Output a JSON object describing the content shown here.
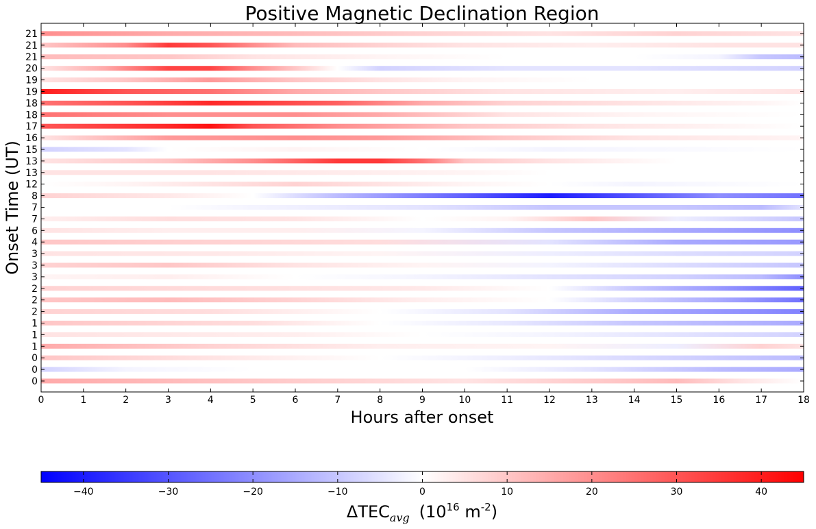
{
  "chart_data": {
    "type": "heatmap",
    "title": "Positive Magnetic Declination Region",
    "xlabel": "Hours after onset",
    "ylabel": "Onset Time (UT)",
    "xlim": [
      0,
      18
    ],
    "x_ticks": [
      "0",
      "1",
      "2",
      "3",
      "4",
      "5",
      "6",
      "7",
      "8",
      "9",
      "10",
      "11",
      "12",
      "13",
      "14",
      "15",
      "16",
      "17",
      "18"
    ],
    "row_labels_bottom_to_top": [
      "0",
      "0",
      "0",
      "1",
      "1",
      "1",
      "2",
      "2",
      "2",
      "3",
      "3",
      "3",
      "4",
      "6",
      "7",
      "7",
      "8",
      "12",
      "13",
      "13",
      "15",
      "16",
      "17",
      "18",
      "18",
      "19",
      "19",
      "20",
      "21",
      "21",
      "21"
    ],
    "rows_bottom_to_top": [
      [
        [
          0,
          15
        ],
        [
          5,
          10
        ],
        [
          10,
          5
        ],
        [
          15,
          12
        ],
        [
          16.5,
          5
        ],
        [
          18,
          0
        ]
      ],
      [
        [
          0,
          -8
        ],
        [
          2,
          -2
        ],
        [
          5,
          0
        ],
        [
          10,
          0
        ],
        [
          13,
          -5
        ],
        [
          16,
          -12
        ],
        [
          18,
          -15
        ]
      ],
      [
        [
          0,
          10
        ],
        [
          4,
          5
        ],
        [
          8,
          0
        ],
        [
          11,
          -3
        ],
        [
          15,
          -8
        ],
        [
          18,
          -12
        ]
      ],
      [
        [
          0,
          15
        ],
        [
          4,
          8
        ],
        [
          8,
          3
        ],
        [
          12,
          2
        ],
        [
          15,
          -3
        ],
        [
          17,
          8
        ],
        [
          18,
          5
        ]
      ],
      [
        [
          0,
          5
        ],
        [
          6,
          3
        ],
        [
          9,
          0
        ],
        [
          12,
          -2
        ],
        [
          15,
          -5
        ],
        [
          18,
          -8
        ]
      ],
      [
        [
          0,
          10
        ],
        [
          5,
          6
        ],
        [
          8,
          0
        ],
        [
          11,
          -4
        ],
        [
          14,
          -10
        ],
        [
          18,
          -15
        ]
      ],
      [
        [
          0,
          8
        ],
        [
          4,
          6
        ],
        [
          8,
          0
        ],
        [
          11,
          -5
        ],
        [
          14,
          -15
        ],
        [
          18,
          -22
        ]
      ],
      [
        [
          0,
          10
        ],
        [
          3,
          12
        ],
        [
          6,
          8
        ],
        [
          9,
          3
        ],
        [
          12,
          0
        ],
        [
          14,
          -8
        ],
        [
          16,
          -15
        ],
        [
          18,
          -25
        ]
      ],
      [
        [
          0,
          8
        ],
        [
          5,
          6
        ],
        [
          9,
          4
        ],
        [
          12,
          0
        ],
        [
          14,
          -10
        ],
        [
          16,
          -18
        ],
        [
          18,
          -28
        ]
      ],
      [
        [
          0,
          2
        ],
        [
          3,
          3
        ],
        [
          6,
          0
        ],
        [
          9,
          -2
        ],
        [
          12,
          -5
        ],
        [
          15,
          -8
        ],
        [
          17,
          -12
        ],
        [
          18,
          -20
        ]
      ],
      [
        [
          0,
          8
        ],
        [
          3,
          10
        ],
        [
          6,
          5
        ],
        [
          9,
          2
        ],
        [
          12,
          -2
        ],
        [
          15,
          -6
        ],
        [
          18,
          -10
        ]
      ],
      [
        [
          0,
          5
        ],
        [
          4,
          4
        ],
        [
          8,
          2
        ],
        [
          12,
          -3
        ],
        [
          15,
          -6
        ],
        [
          18,
          -8
        ]
      ],
      [
        [
          0,
          10
        ],
        [
          4,
          8
        ],
        [
          8,
          6
        ],
        [
          12,
          -5
        ],
        [
          15,
          -15
        ],
        [
          18,
          -18
        ]
      ],
      [
        [
          0,
          5
        ],
        [
          3,
          3
        ],
        [
          6,
          3
        ],
        [
          9,
          -2
        ],
        [
          12,
          -10
        ],
        [
          15,
          -15
        ],
        [
          18,
          -20
        ]
      ],
      [
        [
          0,
          3
        ],
        [
          3,
          6
        ],
        [
          6,
          5
        ],
        [
          9,
          0
        ],
        [
          11,
          2
        ],
        [
          13,
          10
        ],
        [
          15,
          -3
        ],
        [
          18,
          -10
        ]
      ],
      [
        [
          0,
          0
        ],
        [
          3,
          0
        ],
        [
          5,
          -2
        ],
        [
          9,
          -5
        ],
        [
          12,
          -10
        ],
        [
          15,
          -10
        ],
        [
          17,
          -12
        ],
        [
          18,
          -5
        ]
      ],
      [
        [
          0,
          8
        ],
        [
          3,
          4
        ],
        [
          5,
          0
        ],
        [
          7,
          -12
        ],
        [
          10,
          -28
        ],
        [
          12,
          -40
        ],
        [
          14,
          -30
        ],
        [
          16,
          -20
        ],
        [
          18,
          -25
        ]
      ],
      [
        [
          0,
          0
        ],
        [
          2,
          2
        ],
        [
          4,
          5
        ],
        [
          6,
          8
        ],
        [
          8,
          5
        ],
        [
          10,
          2
        ],
        [
          12,
          0
        ],
        [
          14,
          -2
        ],
        [
          18,
          0
        ]
      ],
      [
        [
          0,
          5
        ],
        [
          4,
          5
        ],
        [
          8,
          3
        ],
        [
          10,
          2
        ],
        [
          12,
          0
        ],
        [
          18,
          0
        ]
      ],
      [
        [
          0,
          5
        ],
        [
          3,
          10
        ],
        [
          5,
          20
        ],
        [
          7,
          35
        ],
        [
          8,
          35
        ],
        [
          9,
          25
        ],
        [
          10,
          10
        ],
        [
          12,
          5
        ],
        [
          15,
          0
        ],
        [
          18,
          0
        ]
      ],
      [
        [
          0,
          -8
        ],
        [
          2,
          -5
        ],
        [
          3,
          0
        ],
        [
          6,
          2
        ],
        [
          9,
          0
        ],
        [
          12,
          -2
        ],
        [
          15,
          -1
        ],
        [
          18,
          0
        ]
      ],
      [
        [
          0,
          5
        ],
        [
          3,
          18
        ],
        [
          6,
          20
        ],
        [
          8,
          18
        ],
        [
          11,
          10
        ],
        [
          14,
          5
        ],
        [
          18,
          2
        ]
      ],
      [
        [
          0,
          30
        ],
        [
          2,
          35
        ],
        [
          3,
          38
        ],
        [
          4,
          42
        ],
        [
          5,
          30
        ],
        [
          7,
          20
        ],
        [
          10,
          10
        ],
        [
          13,
          5
        ],
        [
          16,
          2
        ],
        [
          18,
          0
        ]
      ],
      [
        [
          0,
          25
        ],
        [
          3,
          20
        ],
        [
          6,
          20
        ],
        [
          8,
          15
        ],
        [
          11,
          5
        ],
        [
          14,
          2
        ],
        [
          18,
          0
        ]
      ],
      [
        [
          0,
          25
        ],
        [
          2,
          30
        ],
        [
          4,
          38
        ],
        [
          5,
          35
        ],
        [
          7,
          28
        ],
        [
          9,
          15
        ],
        [
          11,
          8
        ],
        [
          14,
          5
        ],
        [
          17,
          2
        ],
        [
          18,
          0
        ]
      ],
      [
        [
          0,
          40
        ],
        [
          2,
          30
        ],
        [
          4,
          25
        ],
        [
          6,
          15
        ],
        [
          8,
          10
        ],
        [
          11,
          5
        ],
        [
          15,
          3
        ],
        [
          18,
          5
        ]
      ],
      [
        [
          0,
          5
        ],
        [
          2,
          10
        ],
        [
          4,
          18
        ],
        [
          6,
          10
        ],
        [
          8,
          5
        ],
        [
          10,
          2
        ],
        [
          13,
          0
        ],
        [
          18,
          0
        ]
      ],
      [
        [
          0,
          5
        ],
        [
          1.5,
          15
        ],
        [
          3,
          33
        ],
        [
          4,
          33
        ],
        [
          5,
          20
        ],
        [
          6,
          10
        ],
        [
          7,
          0
        ],
        [
          8,
          -8
        ],
        [
          11,
          -5
        ],
        [
          14,
          -5
        ],
        [
          18,
          -8
        ]
      ],
      [
        [
          0,
          12
        ],
        [
          3,
          10
        ],
        [
          5,
          5
        ],
        [
          8,
          2
        ],
        [
          11,
          0
        ],
        [
          14,
          0
        ],
        [
          16,
          -2
        ],
        [
          17,
          -10
        ],
        [
          18,
          -12
        ]
      ],
      [
        [
          0,
          10
        ],
        [
          2,
          20
        ],
        [
          3,
          35
        ],
        [
          4,
          30
        ],
        [
          5,
          20
        ],
        [
          6,
          12
        ],
        [
          8,
          8
        ],
        [
          10,
          5
        ],
        [
          13,
          3
        ],
        [
          16,
          5
        ],
        [
          18,
          5
        ]
      ],
      [
        [
          0,
          20
        ],
        [
          3,
          15
        ],
        [
          6,
          12
        ],
        [
          9,
          8
        ],
        [
          12,
          5
        ],
        [
          15,
          8
        ],
        [
          18,
          5
        ]
      ]
    ],
    "colorbar": {
      "label_prefix": "ΔTEC",
      "label_subscript": "avg",
      "label_units_prefix": "(10",
      "label_units_exp": "16",
      "label_units_mid": " m",
      "label_units_exp2": "-2",
      "label_units_suffix": ")",
      "vmin": -45,
      "vmax": 45,
      "ticks": [
        "−40",
        "−30",
        "−20",
        "−10",
        "0",
        "10",
        "20",
        "30",
        "40"
      ],
      "tick_values": [
        -40,
        -30,
        -20,
        -10,
        0,
        10,
        20,
        30,
        40
      ],
      "colormap": "bwr"
    }
  }
}
